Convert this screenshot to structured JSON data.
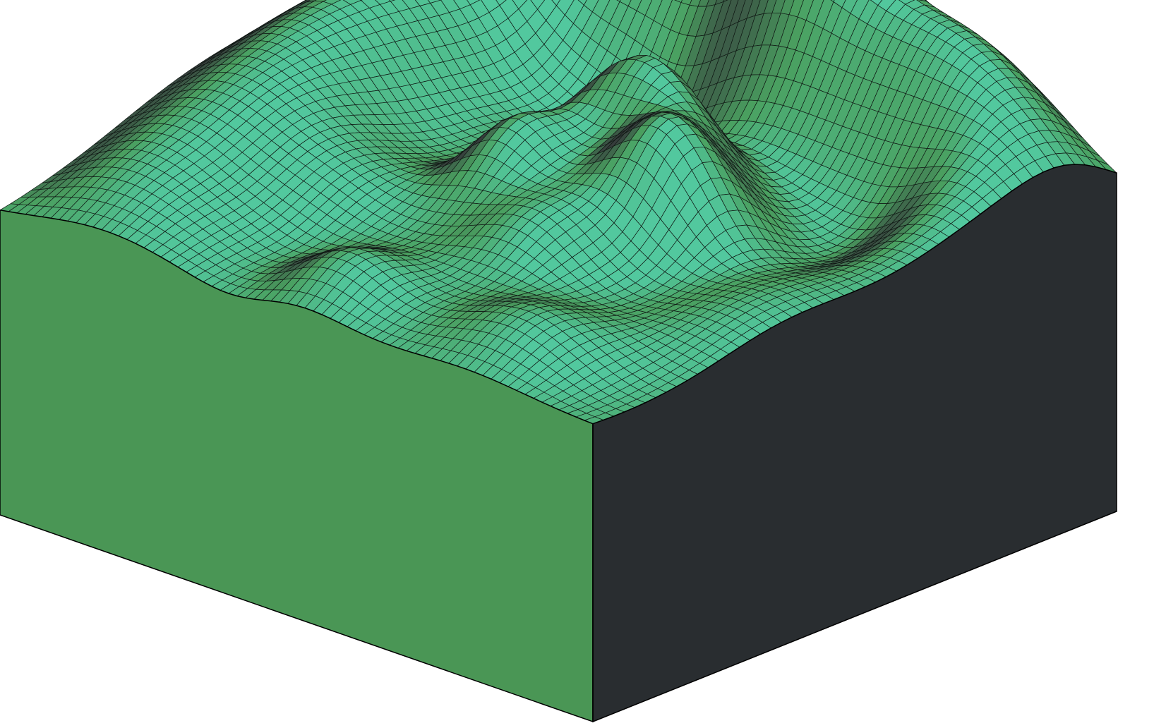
{
  "terrain": {
    "colors": {
      "background": "#ffffff",
      "front_face": "#4a9655",
      "side_face": "#292d30",
      "surface_high": "#52c89e",
      "surface_mid": "#4aa060",
      "surface_low": "#363d3c",
      "grid_line": "#101814",
      "outline": "#000000"
    }
  }
}
